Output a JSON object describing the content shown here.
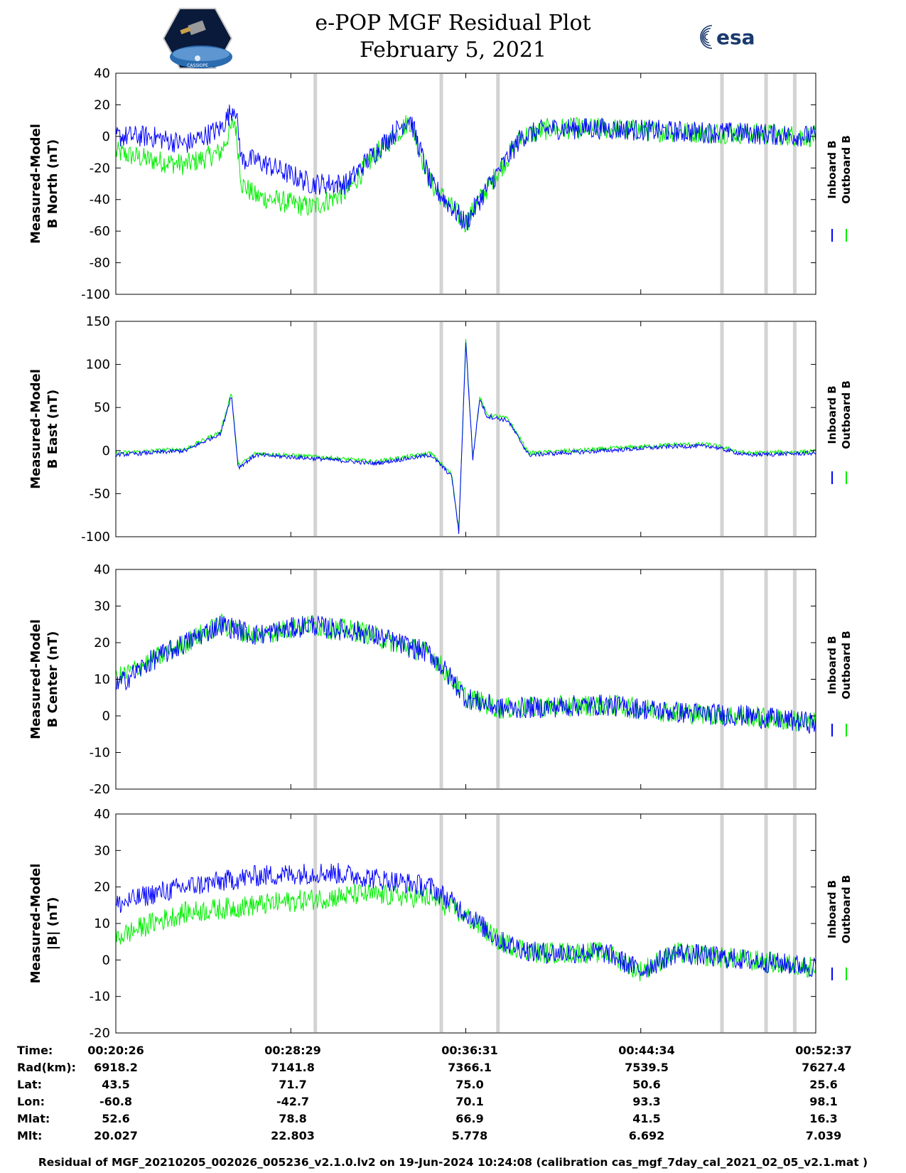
{
  "header": {
    "title_line1": "e-POP MGF Residual Plot",
    "title_line2": "February 5, 2021",
    "left_logo_text": "CASSIOPE",
    "right_logo_text": "esa"
  },
  "colors": {
    "inboard": "#0000ff",
    "outboard": "#00ee00",
    "gap": "#d3d3d3"
  },
  "chart_data": [
    {
      "type": "line",
      "ylabel": [
        "Measured-Model",
        "B North (nT)"
      ],
      "ylim": [
        -100,
        40
      ],
      "yticks": [
        -100,
        -80,
        -60,
        -40,
        -20,
        0,
        20,
        40
      ],
      "xticks": [
        "00:20:26",
        "00:28:29",
        "00:36:31",
        "00:44:34",
        "00:52:37"
      ],
      "legend": [
        "Inboard B",
        "Outboard B"
      ],
      "series": [
        {
          "name": "Inboard B",
          "x": [
            0,
            0.05,
            0.1,
            0.15,
            0.17,
            0.18,
            0.2,
            0.28,
            0.33,
            0.37,
            0.42,
            0.45,
            0.5,
            0.52,
            0.55,
            0.58,
            0.62,
            0.7,
            0.8,
            0.9,
            1.0
          ],
          "values": [
            0,
            0,
            -5,
            5,
            20,
            -15,
            -15,
            -30,
            -30,
            -10,
            12,
            -30,
            -55,
            -40,
            -20,
            0,
            5,
            5,
            3,
            2,
            0
          ]
        },
        {
          "name": "Outboard B",
          "x": [
            0,
            0.05,
            0.1,
            0.15,
            0.17,
            0.18,
            0.2,
            0.28,
            0.33,
            0.37,
            0.42,
            0.45,
            0.5,
            0.52,
            0.55,
            0.58,
            0.62,
            0.7,
            0.8,
            0.9,
            1.0
          ],
          "values": [
            -10,
            -15,
            -18,
            -10,
            10,
            -30,
            -38,
            -45,
            -35,
            -12,
            10,
            -30,
            -55,
            -40,
            -20,
            0,
            5,
            5,
            3,
            2,
            0
          ]
        }
      ]
    },
    {
      "type": "line",
      "ylabel": [
        "Measured-Model",
        "B East (nT)"
      ],
      "ylim": [
        -100,
        150
      ],
      "yticks": [
        -100,
        -50,
        0,
        50,
        100,
        150
      ],
      "xticks": [
        "00:20:26",
        "00:28:29",
        "00:36:31",
        "00:44:34",
        "00:52:37"
      ],
      "legend": [
        "Inboard B",
        "Outboard B"
      ],
      "series": [
        {
          "name": "Inboard B",
          "x": [
            0,
            0.1,
            0.15,
            0.165,
            0.175,
            0.2,
            0.3,
            0.37,
            0.45,
            0.48,
            0.49,
            0.5,
            0.51,
            0.52,
            0.53,
            0.56,
            0.59,
            0.7,
            0.8,
            0.85,
            0.9,
            1.0
          ],
          "values": [
            -5,
            0,
            20,
            65,
            -20,
            -5,
            -10,
            -15,
            -5,
            -30,
            -95,
            125,
            -10,
            60,
            40,
            35,
            -5,
            0,
            5,
            5,
            -5,
            -3
          ]
        },
        {
          "name": "Outboard B",
          "x": [
            0,
            0.1,
            0.15,
            0.165,
            0.175,
            0.2,
            0.3,
            0.37,
            0.45,
            0.48,
            0.49,
            0.5,
            0.51,
            0.52,
            0.53,
            0.56,
            0.59,
            0.7,
            0.8,
            0.85,
            0.9,
            1.0
          ],
          "values": [
            -3,
            2,
            22,
            68,
            -18,
            -3,
            -8,
            -13,
            -3,
            -28,
            -92,
            128,
            -8,
            62,
            42,
            37,
            -3,
            2,
            7,
            7,
            -3,
            -1
          ]
        }
      ]
    },
    {
      "type": "line",
      "ylabel": [
        "Measured-Model",
        "B Center (nT)"
      ],
      "ylim": [
        -20,
        40
      ],
      "yticks": [
        -20,
        -10,
        0,
        10,
        20,
        30,
        40
      ],
      "xticks": [
        "00:20:26",
        "00:28:29",
        "00:36:31",
        "00:44:34",
        "00:52:37"
      ],
      "legend": [
        "Inboard B",
        "Outboard B"
      ],
      "series": [
        {
          "name": "Inboard B",
          "x": [
            0,
            0.05,
            0.1,
            0.15,
            0.2,
            0.28,
            0.3,
            0.35,
            0.45,
            0.48,
            0.5,
            0.55,
            0.7,
            0.8,
            0.9,
            1.0
          ],
          "values": [
            8,
            15,
            20,
            25,
            22,
            25,
            24,
            23,
            17,
            10,
            5,
            2,
            3,
            1,
            0,
            -2
          ]
        },
        {
          "name": "Outboard B",
          "x": [
            0,
            0.05,
            0.1,
            0.15,
            0.2,
            0.28,
            0.3,
            0.35,
            0.45,
            0.48,
            0.5,
            0.55,
            0.7,
            0.8,
            0.9,
            1.0
          ],
          "values": [
            10,
            15,
            20,
            25,
            22,
            25,
            24,
            23,
            17,
            10,
            5,
            2,
            3,
            1,
            0,
            -2
          ]
        }
      ]
    },
    {
      "type": "line",
      "ylabel": [
        "Measured-Model",
        "|B| (nT)"
      ],
      "ylim": [
        -20,
        40
      ],
      "yticks": [
        -20,
        -10,
        0,
        10,
        20,
        30,
        40
      ],
      "xticks": [
        "00:20:26",
        "00:28:29",
        "00:36:31",
        "00:44:34",
        "00:52:37"
      ],
      "legend": [
        "Inboard B",
        "Outboard B"
      ],
      "series": [
        {
          "name": "Inboard B",
          "x": [
            0,
            0.05,
            0.1,
            0.2,
            0.3,
            0.35,
            0.45,
            0.5,
            0.55,
            0.6,
            0.7,
            0.74,
            0.75,
            0.8,
            0.9,
            1.0
          ],
          "values": [
            15,
            18,
            20,
            23,
            24,
            23,
            20,
            13,
            5,
            2,
            2,
            -2,
            -3,
            2,
            0,
            -2
          ]
        },
        {
          "name": "Outboard B",
          "x": [
            0,
            0.05,
            0.1,
            0.2,
            0.3,
            0.35,
            0.45,
            0.5,
            0.55,
            0.6,
            0.7,
            0.74,
            0.75,
            0.8,
            0.9,
            1.0
          ],
          "values": [
            6,
            10,
            13,
            15,
            17,
            18,
            17,
            12,
            5,
            2,
            2,
            -2,
            -3,
            2,
            0,
            -2
          ]
        }
      ]
    }
  ],
  "ephemeris": {
    "labels": [
      "Time:",
      "Rad(km):",
      "Lat:",
      "Lon:",
      "Mlat:",
      "Mlt:"
    ],
    "columns": [
      [
        "00:20:26",
        "6918.2",
        "43.5",
        "-60.8",
        "52.6",
        "20.027"
      ],
      [
        "00:28:29",
        "7141.8",
        "71.7",
        "-42.7",
        "78.8",
        "22.803"
      ],
      [
        "00:36:31",
        "7366.1",
        "75.0",
        "70.1",
        "66.9",
        "5.778"
      ],
      [
        "00:44:34",
        "7539.5",
        "50.6",
        "93.3",
        "41.5",
        "6.692"
      ],
      [
        "00:52:37",
        "7627.4",
        "25.6",
        "98.1",
        "16.3",
        "7.039"
      ]
    ]
  },
  "footer": "Residual of MGF_20210205_002026_005236_v2.1.0.lv2 on 19-Jun-2024 10:24:08 (calibration cas_mgf_7day_cal_2021_02_05_v2.1.mat )"
}
